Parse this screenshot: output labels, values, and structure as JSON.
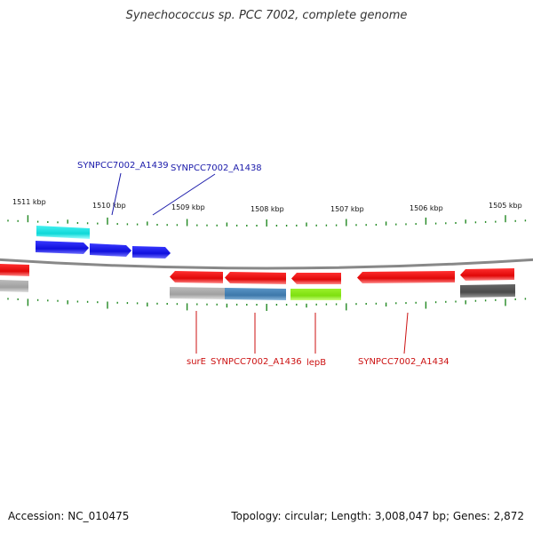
{
  "title": "Synechococcus sp. PCC 7002, complete genome",
  "footer": {
    "accession": "Accession: NC_010475",
    "stats": "Topology: circular; Length: 3,008,047 bp; Genes: 2,872"
  },
  "scale_labels": [
    {
      "name": "tick-1511-kbp",
      "text": "1511 kbp"
    },
    {
      "name": "tick-1510-kbp",
      "text": "1510 kbp"
    },
    {
      "name": "tick-1509-kbp",
      "text": "1509 kbp"
    },
    {
      "name": "tick-1508-kbp",
      "text": "1508 kbp"
    },
    {
      "name": "tick-1507-kbp",
      "text": "1507 kbp"
    },
    {
      "name": "tick-1506-kbp",
      "text": "1506 kbp"
    },
    {
      "name": "tick-1505-kbp",
      "text": "1505 kbp"
    }
  ],
  "gene_labels": {
    "a1439": "SYNPCC7002_A1439",
    "a1438": "SYNPCC7002_A1438",
    "sure": "surE",
    "a1436": "SYNPCC7002_A1436",
    "lepb": "lepB",
    "a1434": "SYNPCC7002_A1434"
  },
  "colors": {
    "forward_gene": "#1a1aee",
    "reverse_gene": "#ee1111",
    "cyan_feature": "#22dddd",
    "gray_feature": "#aaaaaa",
    "steelblue_feature": "#4a86b8",
    "lime_feature": "#88ee11",
    "dark_feature": "#555555",
    "backbone": "#888888",
    "ticks": "#228822",
    "forward_label": "#1a1aaa",
    "reverse_label": "#cc1111"
  }
}
